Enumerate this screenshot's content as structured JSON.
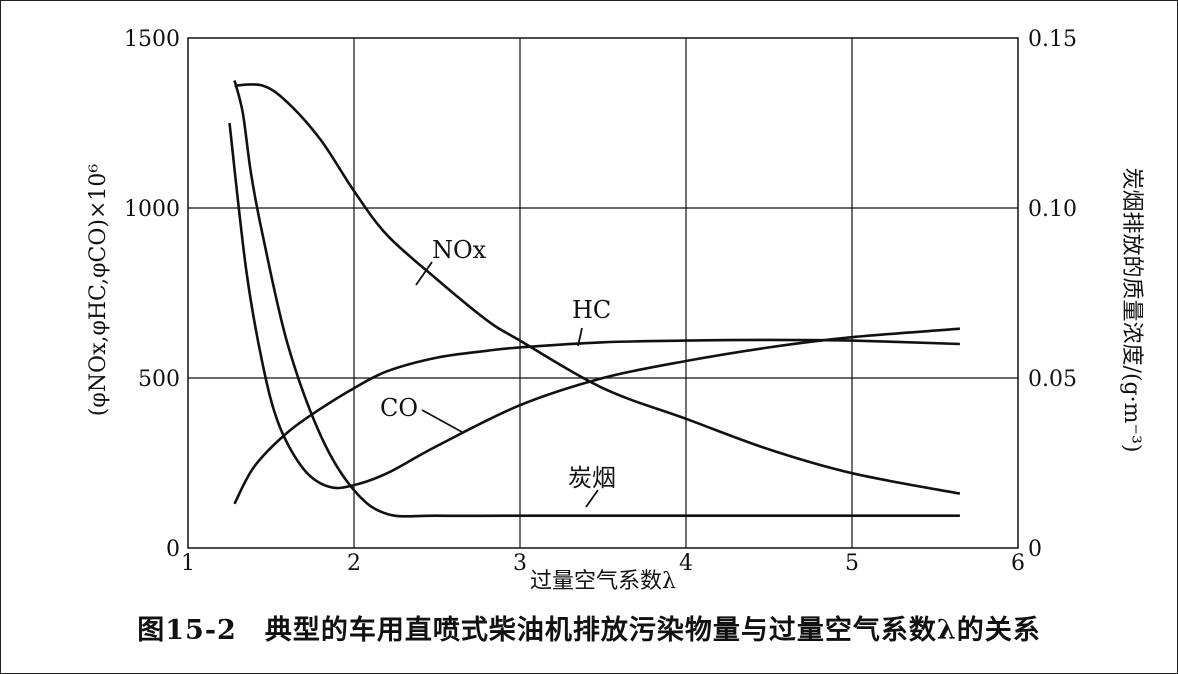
{
  "chart_data": {
    "type": "line",
    "caption": "图15-2　典型的车用直喷式柴油机排放污染物量与过量空气系数λ的关系",
    "xlabel": "过量空气系数λ",
    "ylabel_left": "(φNOx,φHC,φCO)×10⁶",
    "ylabel_right": "炭烟排放的质量浓度/(g·m⁻³)",
    "xlim": [
      1,
      6
    ],
    "ylim_left": [
      0,
      1500
    ],
    "ylim_right": [
      0,
      0.15
    ],
    "x_ticks": [
      "1",
      "2",
      "3",
      "4",
      "5",
      "6"
    ],
    "y_ticks_left": [
      "0",
      "500",
      "1000",
      "1500"
    ],
    "y_ticks_right": [
      "0",
      "0.05",
      "0.10",
      "0.15"
    ],
    "grid": true,
    "series": [
      {
        "name": "NOx",
        "axis": "left",
        "x": [
          1.28,
          1.45,
          1.6,
          1.8,
          2.0,
          2.2,
          2.5,
          2.8,
          3.0,
          3.5,
          4.0,
          4.5,
          5.0,
          5.65
        ],
        "y": [
          1360,
          1360,
          1310,
          1200,
          1050,
          920,
          790,
          670,
          610,
          470,
          380,
          290,
          220,
          160
        ]
      },
      {
        "name": "HC",
        "axis": "left",
        "x": [
          1.28,
          1.4,
          1.6,
          1.8,
          2.0,
          2.2,
          2.5,
          2.8,
          3.0,
          3.5,
          4.0,
          4.5,
          5.0,
          5.65
        ],
        "y": [
          130,
          240,
          340,
          410,
          470,
          520,
          560,
          580,
          590,
          605,
          610,
          612,
          610,
          600
        ]
      },
      {
        "name": "CO",
        "axis": "left",
        "x": [
          1.25,
          1.35,
          1.45,
          1.55,
          1.7,
          1.85,
          2.0,
          2.2,
          2.5,
          3.0,
          3.5,
          4.0,
          4.5,
          5.0,
          5.65
        ],
        "y": [
          1250,
          820,
          540,
          360,
          230,
          180,
          185,
          220,
          300,
          420,
          500,
          550,
          590,
          620,
          645
        ]
      },
      {
        "name": "炭烟",
        "axis": "right",
        "x": [
          1.28,
          1.33,
          1.38,
          1.45,
          1.6,
          1.8,
          2.0,
          2.2,
          2.5,
          3.0,
          4.0,
          5.0,
          5.65
        ],
        "y": [
          0.1375,
          0.128,
          0.11,
          0.092,
          0.06,
          0.033,
          0.017,
          0.01,
          0.0095,
          0.0095,
          0.0095,
          0.0095,
          0.0095
        ]
      }
    ],
    "annotations": [
      {
        "text": "NOx",
        "series": "NOx"
      },
      {
        "text": "HC",
        "series": "HC"
      },
      {
        "text": "CO",
        "series": "CO"
      },
      {
        "text": "炭烟",
        "series": "炭烟"
      }
    ]
  }
}
